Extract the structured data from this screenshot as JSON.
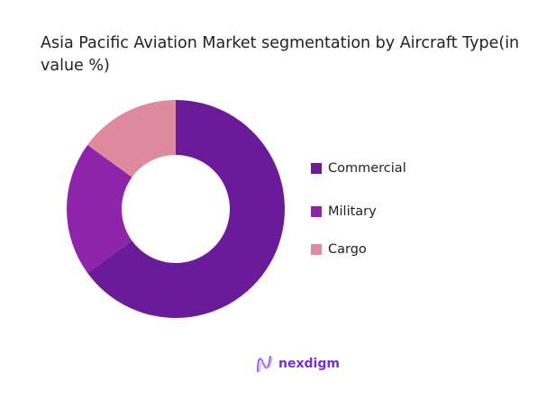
{
  "chart_data": {
    "type": "pie",
    "donut": true,
    "title": "Asia Pacific Aviation Market segmentation by Aircraft Type(in value %)",
    "categories": [
      "Commercial",
      "Military",
      "Cargo"
    ],
    "values": [
      65,
      20,
      15
    ],
    "colors": [
      "#6A1B9A",
      "#8E24AA",
      "#E08AA0"
    ],
    "legend_position": "right"
  },
  "branding": {
    "logo_text": "nexdigm"
  }
}
